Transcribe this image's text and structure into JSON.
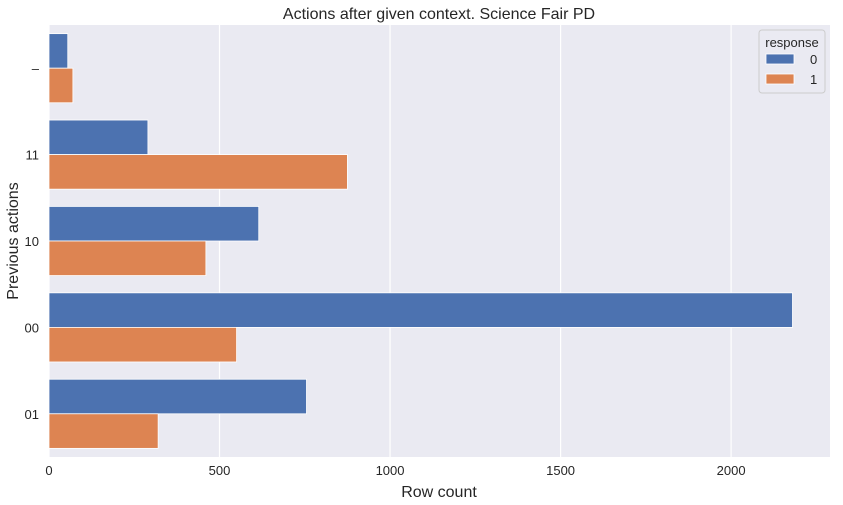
{
  "chart_data": {
    "type": "bar",
    "orientation": "horizontal",
    "title": "Actions after given context. Science Fair PD",
    "xlabel": "Row count",
    "ylabel": "Previous actions",
    "categories": [
      "–",
      "11",
      "10",
      "00",
      "01"
    ],
    "series": [
      {
        "name": "0",
        "color": "#4c72b0",
        "values": [
          55,
          290,
          615,
          2180,
          755
        ]
      },
      {
        "name": "1",
        "color": "#dd8452",
        "values": [
          70,
          875,
          460,
          550,
          320
        ]
      }
    ],
    "xlim": [
      0,
      2290
    ],
    "xticks": [
      0,
      500,
      1000,
      1500,
      2000
    ],
    "grid": true,
    "background_color": "#eaeaf2",
    "legend": {
      "title": "response",
      "position": "top-right"
    }
  }
}
